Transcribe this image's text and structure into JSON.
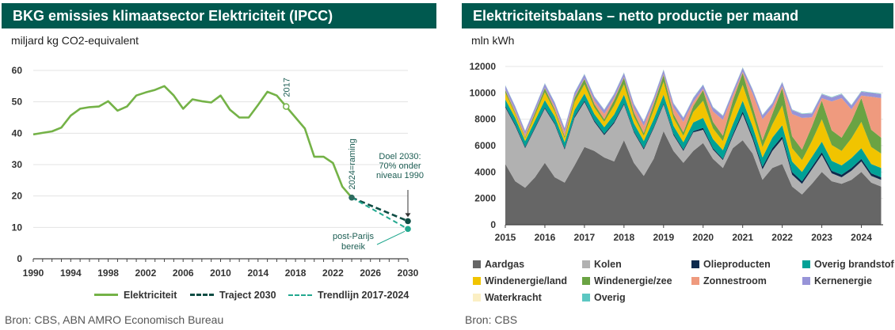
{
  "left": {
    "title": "BKG emissies klimaatsector Elektriciteit (IPCC)",
    "unit": "miljard kg CO2-equivalent",
    "source": "Bron: CBS, ABN AMRO Economisch Bureau",
    "annotations": {
      "year2017": "2017",
      "raming": "2024=raming",
      "doel": [
        "Doel 2030:",
        "70% onder",
        "niveau 1990"
      ],
      "parijs": [
        "post-Parijs",
        "bereik"
      ]
    },
    "colors": {
      "elektriciteit": "#74b247",
      "traject": "#0f4d44",
      "trendlijn": "#22a88f"
    },
    "chart_data": {
      "type": "line",
      "title": "BKG emissies klimaatsector Elektriciteit (IPCC)",
      "ylabel": "miljard kg CO2-equivalent",
      "xlim": [
        1990,
        2030
      ],
      "ylim": [
        0,
        60
      ],
      "x_ticks": [
        1990,
        1994,
        1998,
        2002,
        2006,
        2010,
        2014,
        2018,
        2022,
        2026,
        2030
      ],
      "y_ticks": [
        0,
        10,
        20,
        30,
        40,
        50,
        60
      ],
      "grid": true,
      "legend_position": "bottom",
      "series": [
        {
          "name": "Elektriciteit",
          "x": [
            1990,
            1991,
            1992,
            1993,
            1994,
            1995,
            1996,
            1997,
            1998,
            1999,
            2000,
            2001,
            2002,
            2003,
            2004,
            2005,
            2006,
            2007,
            2008,
            2009,
            2010,
            2011,
            2012,
            2013,
            2014,
            2015,
            2016,
            2017,
            2018,
            2019,
            2020,
            2021,
            2022,
            2023,
            2024
          ],
          "y": [
            39.6,
            40.1,
            40.6,
            41.8,
            45.6,
            47.8,
            48.3,
            48.5,
            50.2,
            47.2,
            48.5,
            52.0,
            53.0,
            53.8,
            55.0,
            52.0,
            47.8,
            50.8,
            50.2,
            49.8,
            52.0,
            47.5,
            45.0,
            45.0,
            49.0,
            53.2,
            52.0,
            48.5,
            45.0,
            41.5,
            32.5,
            32.5,
            30.5,
            23.0,
            19.5
          ]
        },
        {
          "name": "Traject 2030",
          "x": [
            2024,
            2030
          ],
          "y": [
            19.5,
            12.0
          ]
        },
        {
          "name": "Trendlijn 2017-2024",
          "x": [
            2024,
            2030
          ],
          "y": [
            19.5,
            9.5
          ]
        }
      ]
    }
  },
  "right": {
    "title": "Elektriciteitsbalans – netto productie per maand",
    "unit": "mln kWh",
    "source": "Bron: CBS",
    "chart_data": {
      "type": "area",
      "stacked": true,
      "title": "Elektriciteitsbalans – netto productie per maand",
      "ylabel": "mln kWh",
      "xlim": [
        2015,
        2024.55
      ],
      "ylim": [
        0,
        12000
      ],
      "x_ticks": [
        2015,
        2016,
        2017,
        2018,
        2019,
        2020,
        2021,
        2022,
        2023,
        2024
      ],
      "y_ticks": [
        0,
        2000,
        4000,
        6000,
        8000,
        10000,
        12000
      ],
      "grid": true,
      "legend_position": "bottom",
      "x": [
        2015.0,
        2015.25,
        2015.5,
        2015.75,
        2016.0,
        2016.25,
        2016.5,
        2016.75,
        2017.0,
        2017.25,
        2017.5,
        2017.75,
        2018.0,
        2018.25,
        2018.5,
        2018.75,
        2019.0,
        2019.25,
        2019.5,
        2019.75,
        2020.0,
        2020.25,
        2020.5,
        2020.75,
        2021.0,
        2021.25,
        2021.5,
        2021.75,
        2022.0,
        2022.25,
        2022.5,
        2022.75,
        2023.0,
        2023.25,
        2023.5,
        2023.75,
        2024.0,
        2024.25,
        2024.5
      ],
      "series": [
        {
          "name": "Aardgas",
          "color": "#666666",
          "values": [
            4600,
            3300,
            2800,
            3600,
            4700,
            3600,
            3200,
            4500,
            5900,
            5600,
            5100,
            4800,
            6400,
            4700,
            3700,
            5000,
            7100,
            5600,
            4700,
            5600,
            6200,
            5000,
            4300,
            5800,
            6400,
            5400,
            3400,
            4300,
            4600,
            2900,
            2300,
            3100,
            4000,
            3300,
            3100,
            3400,
            4000,
            3200,
            2900
          ]
        },
        {
          "name": "Kolen",
          "color": "#b1b1b1",
          "values": [
            4300,
            4200,
            3000,
            3700,
            4100,
            4000,
            2500,
            3600,
            3400,
            2200,
            1700,
            2900,
            2700,
            2300,
            2000,
            2300,
            2000,
            1200,
            900,
            1400,
            1000,
            700,
            600,
            900,
            2000,
            1100,
            800,
            1300,
            1900,
            900,
            800,
            1100,
            1300,
            600,
            500,
            700,
            800,
            500,
            500
          ]
        },
        {
          "name": "Olieproducten",
          "color": "#0d2a4d",
          "values": [
            100,
            100,
            100,
            100,
            100,
            100,
            100,
            100,
            100,
            100,
            100,
            100,
            100,
            100,
            100,
            100,
            100,
            100,
            100,
            100,
            150,
            100,
            100,
            150,
            200,
            200,
            200,
            200,
            200,
            200,
            200,
            200,
            200,
            200,
            200,
            200,
            200,
            200,
            200
          ]
        },
        {
          "name": "Overig brandstof",
          "color": "#00a196",
          "values": [
            500,
            500,
            450,
            500,
            550,
            500,
            450,
            500,
            550,
            500,
            500,
            550,
            650,
            600,
            550,
            600,
            650,
            600,
            550,
            650,
            750,
            700,
            650,
            750,
            800,
            750,
            700,
            800,
            850,
            800,
            700,
            750,
            800,
            750,
            700,
            750,
            800,
            700,
            700
          ]
        },
        {
          "name": "Windenergie/land",
          "color": "#f1c400",
          "values": [
            500,
            300,
            200,
            400,
            600,
            400,
            300,
            600,
            700,
            500,
            400,
            700,
            800,
            500,
            400,
            700,
            1000,
            600,
            500,
            800,
            1300,
            800,
            700,
            1100,
            1200,
            900,
            800,
            1000,
            1500,
            1000,
            900,
            1200,
            1700,
            1200,
            1100,
            1500,
            2000,
            1300,
            1100
          ]
        },
        {
          "name": "Windenergie/zee",
          "color": "#6aa343",
          "values": [
            200,
            100,
            100,
            200,
            300,
            150,
            150,
            300,
            400,
            250,
            200,
            400,
            500,
            300,
            200,
            400,
            500,
            300,
            250,
            450,
            800,
            500,
            400,
            700,
            900,
            600,
            500,
            800,
            1300,
            900,
            800,
            1100,
            1400,
            1100,
            1000,
            1300,
            1800,
            1300,
            1200
          ]
        },
        {
          "name": "Zonnestroom",
          "color": "#ef9a7e",
          "values": [
            50,
            150,
            200,
            80,
            50,
            200,
            300,
            100,
            50,
            250,
            400,
            150,
            60,
            350,
            550,
            200,
            80,
            500,
            800,
            300,
            100,
            800,
            1200,
            400,
            100,
            1000,
            1600,
            500,
            150,
            1700,
            2400,
            700,
            200,
            2200,
            3000,
            900,
            200,
            2500,
            3000
          ]
        },
        {
          "name": "Kernenergie",
          "color": "#9794d8",
          "values": [
            300,
            300,
            250,
            300,
            300,
            300,
            300,
            300,
            300,
            300,
            300,
            300,
            300,
            300,
            300,
            300,
            300,
            300,
            300,
            300,
            300,
            300,
            300,
            300,
            300,
            300,
            300,
            300,
            300,
            300,
            300,
            300,
            300,
            300,
            300,
            300,
            300,
            300,
            300
          ]
        },
        {
          "name": "Waterkracht",
          "color": "#fbefc4",
          "values": [
            10,
            10,
            10,
            10,
            10,
            10,
            10,
            10,
            10,
            10,
            10,
            10,
            10,
            10,
            10,
            10,
            10,
            10,
            10,
            10,
            10,
            10,
            10,
            10,
            10,
            10,
            10,
            10,
            10,
            10,
            10,
            10,
            10,
            10,
            10,
            10,
            10,
            10,
            10
          ]
        },
        {
          "name": "Overig",
          "color": "#5cc7c2",
          "values": [
            30,
            30,
            30,
            30,
            30,
            30,
            30,
            30,
            30,
            30,
            30,
            30,
            30,
            30,
            30,
            30,
            30,
            30,
            30,
            30,
            30,
            30,
            30,
            30,
            30,
            30,
            30,
            30,
            30,
            30,
            30,
            30,
            30,
            30,
            30,
            30,
            30,
            30,
            30
          ]
        }
      ]
    }
  }
}
